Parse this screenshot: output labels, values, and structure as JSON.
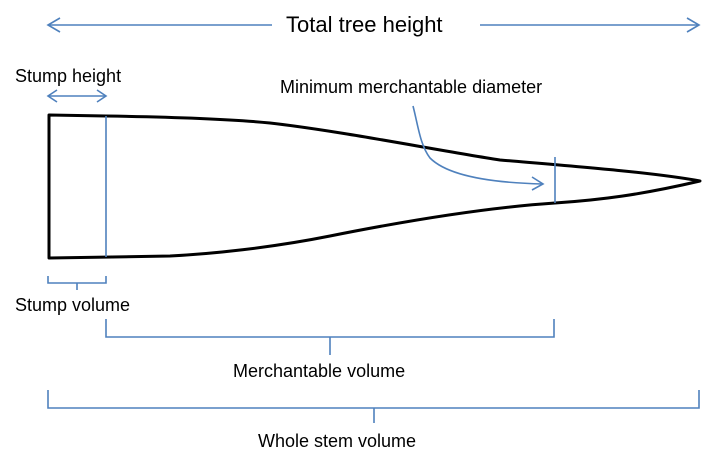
{
  "labels": {
    "total_height": "Total tree height",
    "stump_height": "Stump height",
    "min_diameter": "Minimum merchantable diameter",
    "stump_volume": "Stump volume",
    "merchantable_volume": "Merchantable volume",
    "whole_stem_volume": "Whole stem volume"
  },
  "colors": {
    "annotation": "#4f81bd",
    "stem_outline": "#000000",
    "text": "#000000",
    "background": "#ffffff"
  }
}
